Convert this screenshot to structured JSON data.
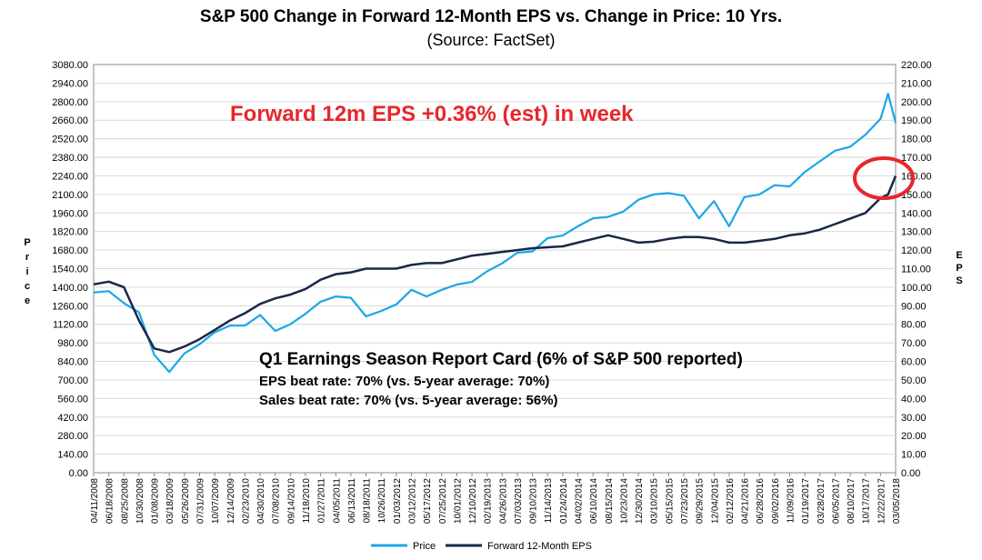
{
  "chart_data": {
    "type": "line",
    "title": "S&P 500 Change in Forward 12-Month EPS vs. Change in Price: 10 Yrs.",
    "subtitle": "(Source: FactSet)",
    "ylabel_left": "Price",
    "ylabel_right": "EPS",
    "ylim_left": [
      0,
      3080
    ],
    "ylim_right": [
      0,
      220
    ],
    "yticks_left": [
      "0.00",
      "140.00",
      "280.00",
      "420.00",
      "560.00",
      "700.00",
      "840.00",
      "980.00",
      "1120.00",
      "1260.00",
      "1400.00",
      "1540.00",
      "1680.00",
      "1820.00",
      "1960.00",
      "2100.00",
      "2240.00",
      "2380.00",
      "2520.00",
      "2660.00",
      "2800.00",
      "2940.00",
      "3080.00"
    ],
    "yticks_right": [
      "0.00",
      "10.00",
      "20.00",
      "30.00",
      "40.00",
      "50.00",
      "60.00",
      "70.00",
      "80.00",
      "90.00",
      "100.00",
      "110.00",
      "120.00",
      "130.00",
      "140.00",
      "150.00",
      "160.00",
      "170.00",
      "180.00",
      "190.00",
      "200.00",
      "210.00",
      "220.00"
    ],
    "xticks": [
      "04/11/2008",
      "06/18/2008",
      "08/25/2008",
      "10/30/2008",
      "01/08/2009",
      "03/18/2009",
      "05/26/2009",
      "07/31/2009",
      "10/07/2009",
      "12/14/2009",
      "02/23/2010",
      "04/30/2010",
      "07/08/2010",
      "09/14/2010",
      "11/18/2010",
      "01/27/2011",
      "04/05/2011",
      "06/13/2011",
      "08/18/2011",
      "10/26/2011",
      "01/03/2012",
      "03/12/2012",
      "05/17/2012",
      "07/25/2012",
      "10/01/2012",
      "12/10/2012",
      "02/19/2013",
      "04/26/2013",
      "07/03/2013",
      "09/10/2013",
      "11/14/2013",
      "01/24/2014",
      "04/02/2014",
      "06/10/2014",
      "08/15/2014",
      "10/23/2014",
      "12/30/2014",
      "03/10/2015",
      "05/15/2015",
      "07/23/2015",
      "09/29/2015",
      "12/04/2015",
      "02/12/2016",
      "04/21/2016",
      "06/28/2016",
      "09/02/2016",
      "11/09/2016",
      "01/19/2017",
      "03/28/2017",
      "06/05/2017",
      "08/10/2017",
      "10/17/2017",
      "12/22/2017",
      "03/05/2018"
    ],
    "series": [
      {
        "name": "Price",
        "axis": "left",
        "color": "#1aa7e8",
        "x": [
          0,
          1,
          2,
          3,
          4,
          5,
          6,
          7,
          8,
          9,
          10,
          11,
          12,
          13,
          14,
          15,
          16,
          17,
          18,
          19,
          20,
          21,
          22,
          23,
          24,
          25,
          26,
          27,
          28,
          29,
          30,
          31,
          32,
          33,
          34,
          35,
          36,
          37,
          38,
          39,
          40,
          41,
          42,
          43,
          44,
          45,
          46,
          47,
          48,
          49,
          50,
          51,
          52,
          52.5,
          53
        ],
        "values": [
          1360,
          1370,
          1280,
          1210,
          890,
          760,
          900,
          970,
          1060,
          1110,
          1110,
          1190,
          1070,
          1120,
          1200,
          1290,
          1330,
          1320,
          1180,
          1220,
          1270,
          1380,
          1330,
          1380,
          1420,
          1440,
          1520,
          1580,
          1660,
          1670,
          1770,
          1790,
          1860,
          1920,
          1930,
          1970,
          2060,
          2100,
          2110,
          2090,
          1920,
          2050,
          1860,
          2080,
          2100,
          2170,
          2160,
          2270,
          2350,
          2430,
          2460,
          2550,
          2670,
          2860,
          2640
        ]
      },
      {
        "name": "Forward 12-Month EPS",
        "axis": "right",
        "color": "#1a2748",
        "x": [
          0,
          1,
          2,
          3,
          4,
          5,
          6,
          7,
          8,
          9,
          10,
          11,
          12,
          13,
          14,
          15,
          16,
          17,
          18,
          19,
          20,
          21,
          22,
          23,
          24,
          25,
          26,
          27,
          28,
          29,
          30,
          31,
          32,
          33,
          34,
          35,
          36,
          37,
          38,
          39,
          40,
          41,
          42,
          43,
          44,
          45,
          46,
          47,
          48,
          49,
          50,
          51,
          52,
          52.5,
          53
        ],
        "values": [
          101.5,
          103,
          100,
          82,
          67,
          65,
          68,
          72,
          77,
          82,
          86,
          91,
          94,
          96,
          99,
          104,
          107,
          108,
          110,
          110,
          110,
          112,
          113,
          113,
          115,
          117,
          118,
          119,
          120,
          121,
          121.5,
          122,
          124,
          126,
          128,
          126,
          124,
          124.5,
          126,
          127,
          127,
          126,
          124,
          124,
          125,
          126,
          128,
          129,
          131,
          134,
          137,
          140,
          148,
          150,
          160
        ]
      }
    ],
    "annotations": {
      "headline": "Forward 12m EPS +0.36% (est) in week",
      "report_title": "Q1 Earnings Season Report Card (6% of S&P 500 reported)",
      "eps_beat": "EPS beat rate: 70% (vs. 5-year average: 70%)",
      "sales_beat": "Sales beat rate: 70% (vs. 5-year average: 56%)",
      "circle_color": "#e8262b"
    },
    "legend": [
      "Price",
      "Forward 12-Month EPS"
    ],
    "legend_position": "bottom-center"
  }
}
